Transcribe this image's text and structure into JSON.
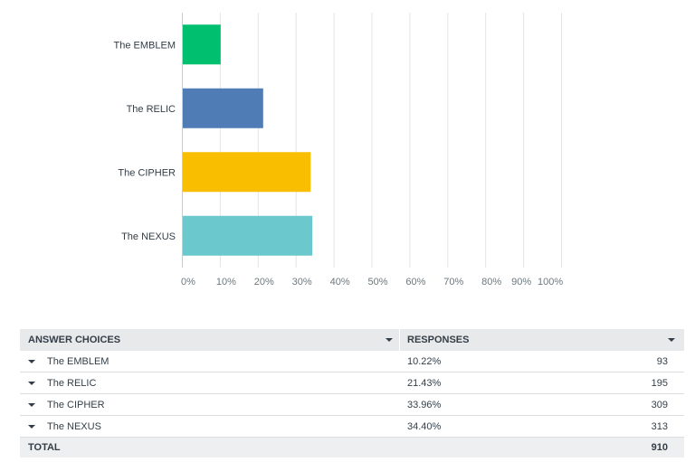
{
  "chart_data": {
    "type": "bar",
    "orientation": "horizontal",
    "categories": [
      "The EMBLEM",
      "The RELIC",
      "The CIPHER",
      "The NEXUS"
    ],
    "values": [
      10.22,
      21.43,
      33.96,
      34.4
    ],
    "colors": [
      "#00bf6f",
      "#507cb6",
      "#f9be00",
      "#6bc8cd"
    ],
    "xlim": [
      0,
      100
    ],
    "xticks": [
      "0%",
      "10%",
      "20%",
      "30%",
      "40%",
      "50%",
      "60%",
      "70%",
      "80%",
      "90%",
      "100%"
    ],
    "grid": true
  },
  "table": {
    "header": {
      "choices": "ANSWER CHOICES",
      "responses": "RESPONSES"
    },
    "rows": [
      {
        "choice": "The EMBLEM",
        "pct": "10.22%",
        "count": "93"
      },
      {
        "choice": "The RELIC",
        "pct": "21.43%",
        "count": "195"
      },
      {
        "choice": "The CIPHER",
        "pct": "33.96%",
        "count": "309"
      },
      {
        "choice": "The NEXUS",
        "pct": "34.40%",
        "count": "313"
      }
    ],
    "total": {
      "label": "TOTAL",
      "count": "910"
    }
  }
}
